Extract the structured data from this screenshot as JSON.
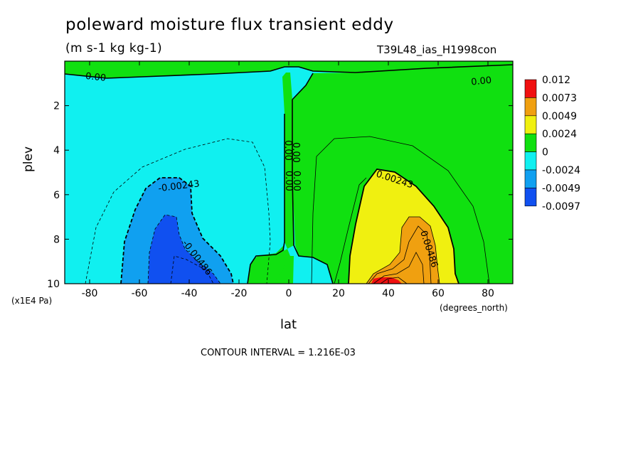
{
  "chart_data": {
    "type": "contour",
    "title": "poleward moisture flux transient eddy",
    "units": "(m s-1 kg kg-1)",
    "run_label": "T39L48_ias_H1998con",
    "xlabel": "lat",
    "x_unit": "(degrees_north)",
    "ylabel": "plev",
    "y_unit": "(x1E4 Pa)",
    "xlim": [
      -90,
      90
    ],
    "ylim": [
      10,
      0
    ],
    "x_ticks": [
      -80,
      -60,
      -40,
      -20,
      0,
      20,
      40,
      60,
      80
    ],
    "y_ticks": [
      2,
      4,
      6,
      8,
      10
    ],
    "contour_interval_text": "CONTOUR INTERVAL = 1.216E-03",
    "contour_labels": [
      "0.00",
      "0.00",
      "0.00",
      "0.00",
      "0.00",
      "0.00",
      "-0.00243",
      "-0.00486",
      "0.00243",
      "0.00486"
    ],
    "colorbar": {
      "labels": [
        "0.012",
        "0.0073",
        "0.0049",
        "0.0024",
        "0",
        "-0.0024",
        "-0.0049",
        "-0.0097"
      ],
      "colors": [
        "#f01010",
        "#f0a010",
        "#f0f010",
        "#10e010",
        "#10f0f0",
        "#10a0f0",
        "#1050f0"
      ]
    },
    "fill_colors": {
      "lev_neg3": "#1050f0",
      "lev_neg2": "#10a0f0",
      "lev_neg1": "#10f0f0",
      "lev_0": "#10e010",
      "lev_1": "#f0f010",
      "lev_2": "#f0a010",
      "lev_3": "#f01010"
    }
  }
}
